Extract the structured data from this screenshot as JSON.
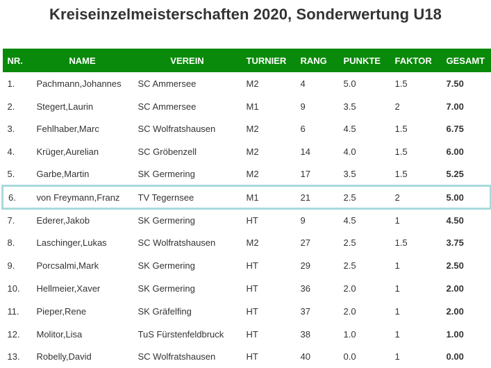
{
  "page": {
    "title": "Kreiseinzelmeisterschaften 2020, Sonderwertung U18"
  },
  "colors": {
    "header_bg": "#0a8a0a",
    "header_text": "#ffffff",
    "highlight_border": "#a9d9dd"
  },
  "table": {
    "columns": [
      "NR.",
      "NAME",
      "VEREIN",
      "TURNIER",
      "RANG",
      "PUNKTE",
      "FAKTOR",
      "GESAMT"
    ],
    "highlighted_row": 5,
    "rows": [
      [
        "1.",
        "Pachmann,Johannes",
        "SC Ammersee",
        "M2",
        "4",
        "5.0",
        "1.5",
        "7.50"
      ],
      [
        "2.",
        "Stegert,Laurin",
        "SC Ammersee",
        "M1",
        "9",
        "3.5",
        "2",
        "7.00"
      ],
      [
        "3.",
        "Fehlhaber,Marc",
        "SC Wolfratshausen",
        "M2",
        "6",
        "4.5",
        "1.5",
        "6.75"
      ],
      [
        "4.",
        "Krüger,Aurelian",
        "SC Gröbenzell",
        "M2",
        "14",
        "4.0",
        "1.5",
        "6.00"
      ],
      [
        "5.",
        "Garbe,Martin",
        "SK Germering",
        "M2",
        "17",
        "3.5",
        "1.5",
        "5.25"
      ],
      [
        "6.",
        "von Freymann,Franz",
        "TV Tegernsee",
        "M1",
        "21",
        "2.5",
        "2",
        "5.00"
      ],
      [
        "7.",
        "Ederer,Jakob",
        "SK Germering",
        "HT",
        "9",
        "4.5",
        "1",
        "4.50"
      ],
      [
        "8.",
        "Laschinger,Lukas",
        "SC Wolfratshausen",
        "M2",
        "27",
        "2.5",
        "1.5",
        "3.75"
      ],
      [
        "9.",
        "Porcsalmi,Mark",
        "SK Germering",
        "HT",
        "29",
        "2.5",
        "1",
        "2.50"
      ],
      [
        "10.",
        "Hellmeier,Xaver",
        "SK Germering",
        "HT",
        "36",
        "2.0",
        "1",
        "2.00"
      ],
      [
        "11.",
        "Pieper,Rene",
        "SK Gräfelfing",
        "HT",
        "37",
        "2.0",
        "1",
        "2.00"
      ],
      [
        "12.",
        "Molitor,Lisa",
        "TuS Fürstenfeldbruck",
        "HT",
        "38",
        "1.0",
        "1",
        "1.00"
      ],
      [
        "13.",
        "Robelly,David",
        "SC Wolfratshausen",
        "HT",
        "40",
        "0.0",
        "1",
        "0.00"
      ]
    ]
  }
}
